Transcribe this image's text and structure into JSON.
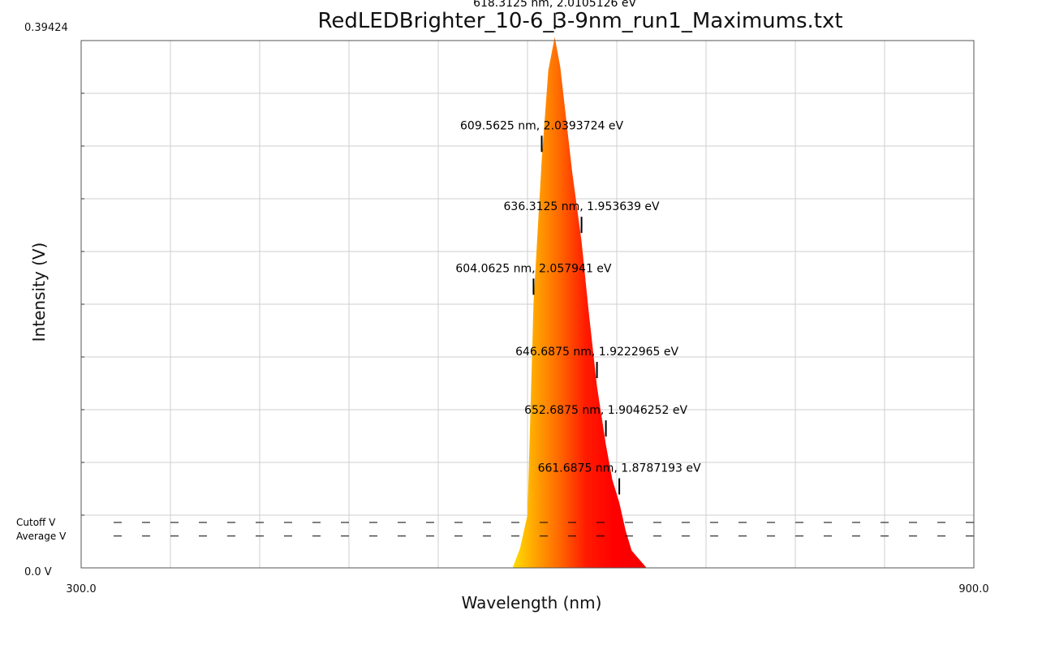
{
  "chart_data": {
    "type": "area",
    "title": "RedLEDBrighter_10-6_3-9nm_run1_Maximums.txt",
    "xlabel": "Wavelength (nm)",
    "ylabel": "Intensity (V)",
    "xlim": [
      300.0,
      900.0
    ],
    "ylim": [
      0.0,
      0.39424
    ],
    "x_tick_labels": [
      "300.0",
      "900.0"
    ],
    "y_tick_labels": [
      "0.0 V",
      "0.39424"
    ],
    "grid": true,
    "series": [
      {
        "x": [
          590,
          595,
          600,
          604.0625,
          609.5625,
          614,
          618.3125,
          622,
          626,
          630,
          636.3125,
          641,
          646.6875,
          652.6875,
          657,
          661.6875,
          666,
          670,
          680
        ],
        "y": [
          0.0,
          0.0146,
          0.0396,
          0.1981,
          0.3049,
          0.3721,
          0.3968,
          0.3747,
          0.3354,
          0.2963,
          0.2443,
          0.193,
          0.1358,
          0.0921,
          0.066,
          0.0488,
          0.0277,
          0.013,
          0.0
        ]
      }
    ],
    "reference_lines": [
      {
        "label": "Cutoff V",
        "y": 0.034
      },
      {
        "label": "Average V",
        "y": 0.0238
      }
    ],
    "annotations": [
      {
        "text": "618.3125 nm, 2.0105126 eV",
        "x": 618.3125,
        "y": 0.3968
      },
      {
        "text": "609.5625 nm, 2.0393724 eV",
        "x": 609.5625,
        "y": 0.3049
      },
      {
        "text": "636.3125 nm, 1.953639 eV",
        "x": 636.3125,
        "y": 0.2443
      },
      {
        "text": "604.0625 nm, 2.057941 eV",
        "x": 604.0625,
        "y": 0.1981
      },
      {
        "text": "646.6875 nm, 1.9222965 eV",
        "x": 646.6875,
        "y": 0.1358
      },
      {
        "text": "652.6875 nm, 1.9046252 eV",
        "x": 652.6875,
        "y": 0.0921
      },
      {
        "text": "661.6875 nm, 1.8787193 eV",
        "x": 661.6875,
        "y": 0.0488
      }
    ]
  }
}
